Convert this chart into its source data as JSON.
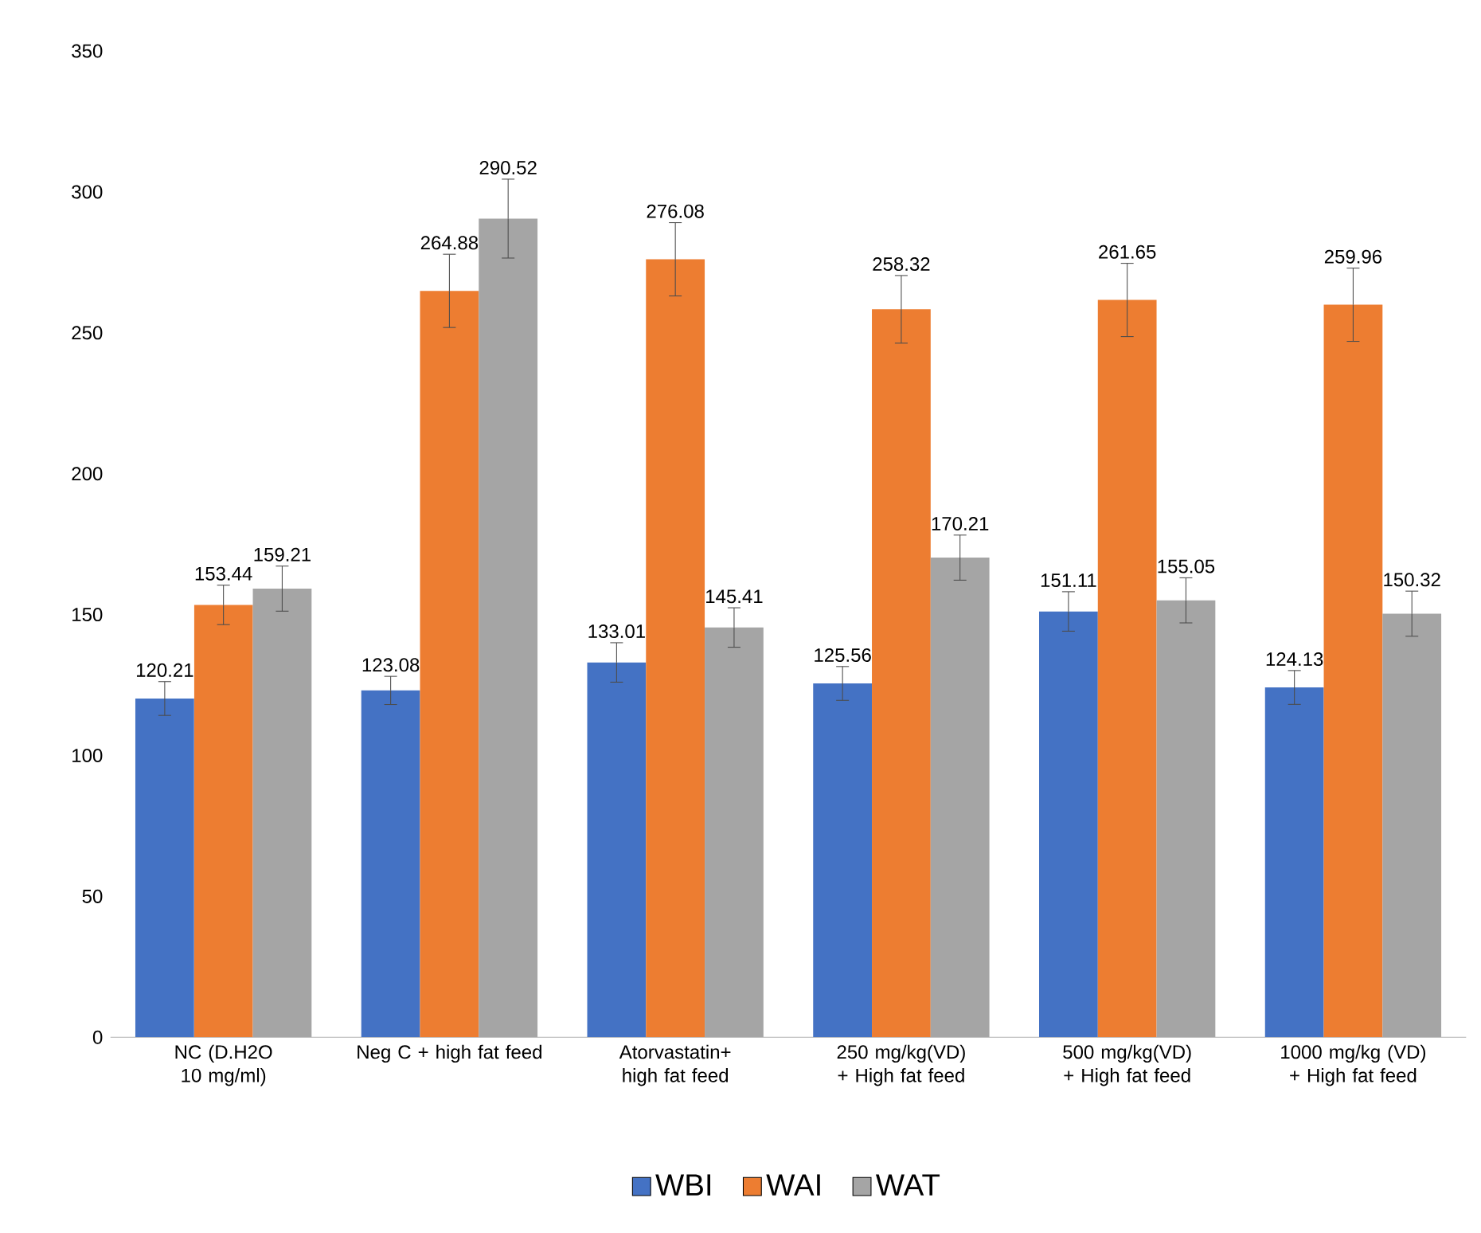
{
  "chart_data": {
    "type": "bar",
    "categories": [
      "NC (D.H2O 10 mg/ml)",
      "Neg C + high fat feed",
      "Atorvastatin+ high fat feed",
      "250 mg/kg(VD) + High fat feed",
      "500 mg/kg(VD) + High fat feed",
      "1000 mg/kg (VD) + High fat feed"
    ],
    "series": [
      {
        "name": "WBI",
        "color": "#4472c4",
        "values": [
          120.21,
          123.08,
          133.01,
          125.56,
          151.11,
          124.13
        ],
        "errors": [
          6,
          5,
          7,
          6,
          7,
          6
        ]
      },
      {
        "name": "WAI",
        "color": "#ed7d31",
        "values": [
          153.44,
          264.88,
          276.08,
          258.32,
          261.65,
          259.96
        ],
        "errors": [
          7,
          13,
          13,
          12,
          13,
          13
        ]
      },
      {
        "name": "WAT",
        "color": "#a5a5a5",
        "values": [
          159.21,
          290.52,
          145.41,
          170.21,
          155.05,
          150.32
        ],
        "errors": [
          8,
          14,
          7,
          8,
          8,
          8
        ]
      }
    ],
    "ylim": [
      0,
      350
    ],
    "yticks": [
      0,
      50,
      100,
      150,
      200,
      250,
      300,
      350
    ],
    "grid": false,
    "legend": "bottom",
    "data_labels": true
  }
}
